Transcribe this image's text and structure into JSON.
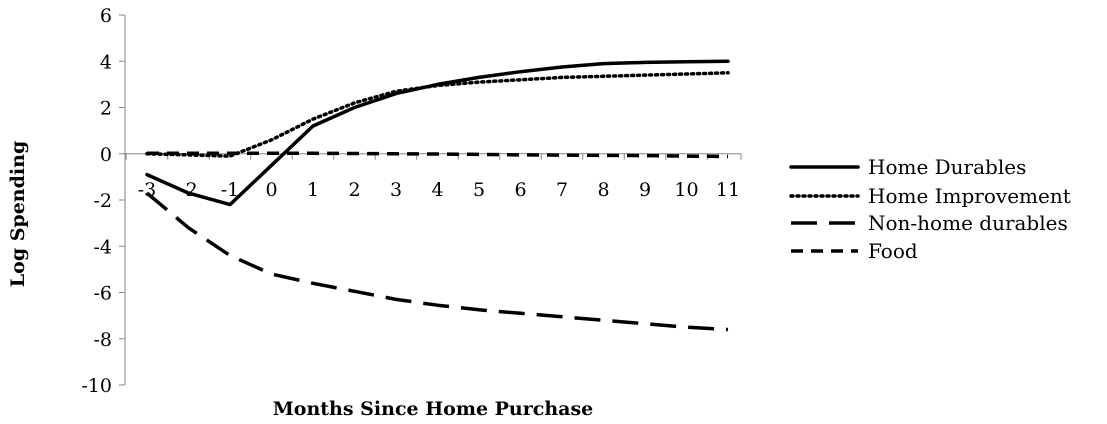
{
  "chart_data": {
    "type": "line",
    "title": "",
    "xlabel": "Months Since Home Purchase",
    "ylabel": "Log Spending",
    "x": [
      -3,
      -2,
      -1,
      0,
      1,
      2,
      3,
      4,
      5,
      6,
      7,
      8,
      9,
      10,
      11
    ],
    "x_tick_labels": [
      "-3",
      "-2",
      "-1",
      "0",
      "1",
      "2",
      "3",
      "4",
      "5",
      "6",
      "7",
      "8",
      "9",
      "10",
      "11"
    ],
    "ylim": [
      -10,
      6
    ],
    "y_ticks": [
      -10,
      -8,
      -6,
      -4,
      -2,
      0,
      2,
      4,
      6
    ],
    "y_tick_labels": [
      "-10",
      "-8",
      "-6",
      "-4",
      "-2",
      "0",
      "2",
      "4",
      "6"
    ],
    "grid": false,
    "legend_position": "right",
    "series": [
      {
        "name": "Home Durables",
        "style": "solid",
        "color": "#000000",
        "values": [
          -0.9,
          -1.7,
          -2.2,
          -0.5,
          1.2,
          2.0,
          2.6,
          3.0,
          3.3,
          3.55,
          3.75,
          3.9,
          3.95,
          3.98,
          4.0
        ]
      },
      {
        "name": "Home Improvement",
        "style": "dotted",
        "color": "#000000",
        "values": [
          0.0,
          -0.05,
          -0.1,
          0.6,
          1.5,
          2.2,
          2.7,
          2.95,
          3.1,
          3.2,
          3.3,
          3.35,
          3.4,
          3.45,
          3.5
        ]
      },
      {
        "name": "Non-home durables",
        "style": "long-dash",
        "color": "#000000",
        "values": [
          -1.7,
          -3.2,
          -4.4,
          -5.2,
          -5.6,
          -5.95,
          -6.3,
          -6.55,
          -6.75,
          -6.9,
          -7.05,
          -7.2,
          -7.35,
          -7.5,
          -7.6
        ]
      },
      {
        "name": "Food",
        "style": "dash",
        "color": "#000000",
        "values": [
          0.02,
          0.02,
          0.02,
          0.02,
          0.02,
          0.01,
          0.0,
          -0.01,
          -0.03,
          -0.05,
          -0.06,
          -0.07,
          -0.08,
          -0.1,
          -0.12
        ]
      }
    ]
  }
}
